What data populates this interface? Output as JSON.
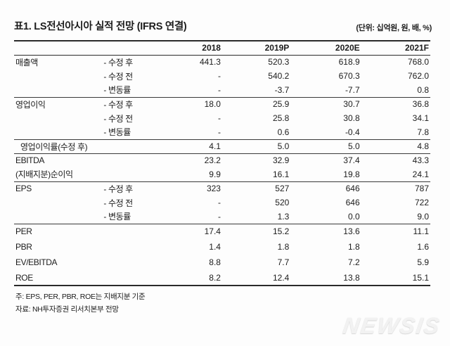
{
  "table": {
    "title": "표1. LS전선아시아 실적 전망 (IFRS 연결)",
    "unit_note": "(단위: 십억원, 원, 배, %)",
    "columns": [
      "2018",
      "2019P",
      "2020E",
      "2021F"
    ],
    "rows": [
      {
        "label": "매출액",
        "sub": "- 수정 후",
        "values": [
          "441.3",
          "520.3",
          "618.9",
          "768.0"
        ],
        "sep": false,
        "indent": false,
        "tall": false
      },
      {
        "label": "",
        "sub": "- 수정 전",
        "values": [
          "-",
          "540.2",
          "670.3",
          "762.0"
        ],
        "sep": false,
        "indent": false,
        "tall": false
      },
      {
        "label": "",
        "sub": "- 변동률",
        "values": [
          "-",
          "-3.7",
          "-7.7",
          "0.8"
        ],
        "sep": false,
        "indent": false,
        "tall": false
      },
      {
        "label": "영업이익",
        "sub": "- 수정 후",
        "values": [
          "18.0",
          "25.9",
          "30.7",
          "36.8"
        ],
        "sep": true,
        "indent": false,
        "tall": false
      },
      {
        "label": "",
        "sub": "- 수정 전",
        "values": [
          "-",
          "25.8",
          "30.8",
          "34.1"
        ],
        "sep": false,
        "indent": false,
        "tall": false
      },
      {
        "label": "",
        "sub": "- 변동률",
        "values": [
          "-",
          "0.6",
          "-0.4",
          "7.8"
        ],
        "sep": false,
        "indent": false,
        "tall": false
      },
      {
        "label": "영업이익률(수정 후)",
        "sub": null,
        "values": [
          "4.1",
          "5.0",
          "5.0",
          "4.8"
        ],
        "sep": true,
        "indent": true,
        "tall": false
      },
      {
        "label": "EBITDA",
        "sub": null,
        "values": [
          "23.2",
          "32.9",
          "37.4",
          "43.3"
        ],
        "sep": true,
        "indent": false,
        "tall": false
      },
      {
        "label": "(지배지분)순이익",
        "sub": null,
        "values": [
          "9.9",
          "16.1",
          "19.8",
          "24.1"
        ],
        "sep": false,
        "indent": false,
        "tall": false
      },
      {
        "label": "EPS",
        "sub": "- 수정 후",
        "values": [
          "323",
          "527",
          "646",
          "787"
        ],
        "sep": true,
        "indent": false,
        "tall": false
      },
      {
        "label": "",
        "sub": "- 수정 전",
        "values": [
          "-",
          "520",
          "646",
          "722"
        ],
        "sep": false,
        "indent": false,
        "tall": false
      },
      {
        "label": "",
        "sub": "- 변동률",
        "values": [
          "-",
          "1.3",
          "0.0",
          "9.0"
        ],
        "sep": false,
        "indent": false,
        "tall": false
      },
      {
        "label": "PER",
        "sub": null,
        "values": [
          "17.4",
          "15.2",
          "13.6",
          "11.1"
        ],
        "sep": true,
        "indent": false,
        "tall": true
      },
      {
        "label": "PBR",
        "sub": null,
        "values": [
          "1.4",
          "1.8",
          "1.8",
          "1.6"
        ],
        "sep": false,
        "indent": false,
        "tall": true
      },
      {
        "label": "EV/EBITDA",
        "sub": null,
        "values": [
          "8.8",
          "7.7",
          "7.2",
          "5.9"
        ],
        "sep": false,
        "indent": false,
        "tall": true
      },
      {
        "label": "ROE",
        "sub": null,
        "values": [
          "8.2",
          "12.4",
          "13.8",
          "15.1"
        ],
        "sep": false,
        "indent": false,
        "tall": true
      }
    ],
    "notes": {
      "footnote": "주: EPS, PER, PBR, ROE는 지배지분 기준",
      "source": "자료: NH투자증권 리서치본부 전망"
    }
  },
  "watermark": {
    "text": "NEWSIS"
  }
}
